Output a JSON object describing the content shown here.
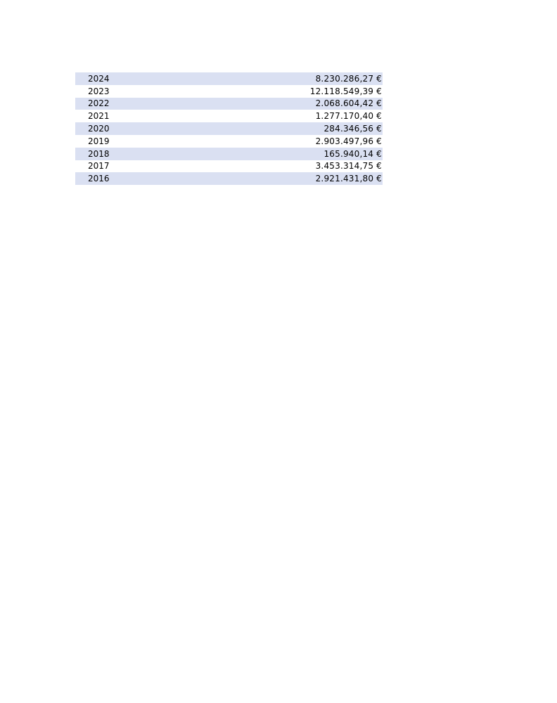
{
  "colors": {
    "band": "#dae0f2"
  },
  "rows": [
    {
      "year": "2024",
      "amount": "8.230.286,27 €"
    },
    {
      "year": "2023",
      "amount": "12.118.549,39 €"
    },
    {
      "year": "2022",
      "amount": "2.068.604,42 €"
    },
    {
      "year": "2021",
      "amount": "1.277.170,40 €"
    },
    {
      "year": "2020",
      "amount": "284.346,56 €"
    },
    {
      "year": "2019",
      "amount": "2.903.497,96 €"
    },
    {
      "year": "2018",
      "amount": "165.940,14 €"
    },
    {
      "year": "2017",
      "amount": "3.453.314,75 €"
    },
    {
      "year": "2016",
      "amount": "2.921.431,80 €"
    }
  ]
}
